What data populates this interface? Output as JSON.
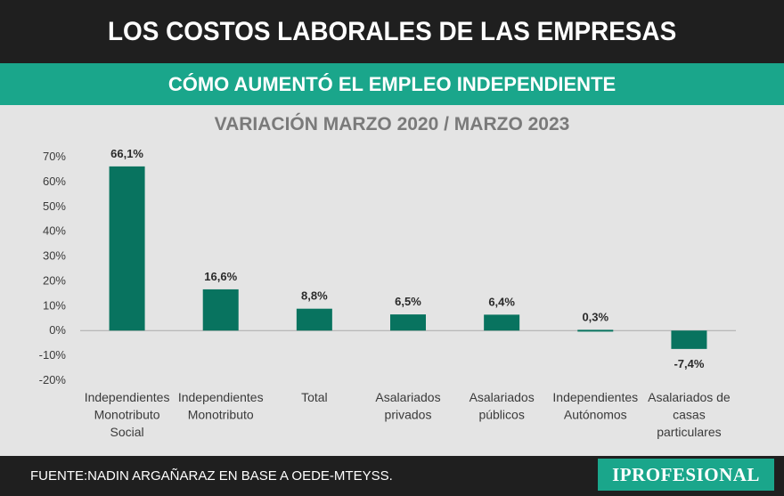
{
  "header": {
    "title": "LOS COSTOS LABORALES DE LAS EMPRESAS"
  },
  "subheader": {
    "title": "CÓMO AUMENTÓ EL EMPLEO INDEPENDIENTE"
  },
  "footer": {
    "source": "FUENTE:NADIN ARGAÑARAZ EN BASE A OEDE-MTEYSS.",
    "logo": "IPROFESIONAL"
  },
  "colors": {
    "bar": "#08735f",
    "header_bg": "#1f1f1f",
    "subheader_bg": "#1aa68b",
    "chart_bg": "#e4e4e4"
  },
  "chart_data": {
    "type": "bar",
    "title": "VARIACIÓN MARZO 2020 / MARZO 2023",
    "xlabel": "",
    "ylabel": "",
    "ylim": [
      -20,
      70
    ],
    "yticks": [
      70,
      60,
      50,
      40,
      30,
      20,
      10,
      0,
      -10,
      -20
    ],
    "ytick_labels": [
      "70%",
      "60%",
      "50%",
      "40%",
      "30%",
      "20%",
      "10%",
      "0%",
      "-10%",
      "-20%"
    ],
    "grid": false,
    "categories": [
      [
        "Independientes",
        "Monotributo",
        "Social"
      ],
      [
        "Independientes",
        "Monotributo"
      ],
      [
        "Total"
      ],
      [
        "Asalariados",
        "privados"
      ],
      [
        "Asalariados",
        "públicos"
      ],
      [
        "Independientes",
        "Autónomos"
      ],
      [
        "Asalariados de",
        "casas",
        "particulares"
      ]
    ],
    "values": [
      66.1,
      16.6,
      8.8,
      6.5,
      6.4,
      0.3,
      -7.4
    ],
    "data_labels": [
      "66,1%",
      "16,6%",
      "8,8%",
      "6,5%",
      "6,4%",
      "0,3%",
      "-7,4%"
    ]
  }
}
